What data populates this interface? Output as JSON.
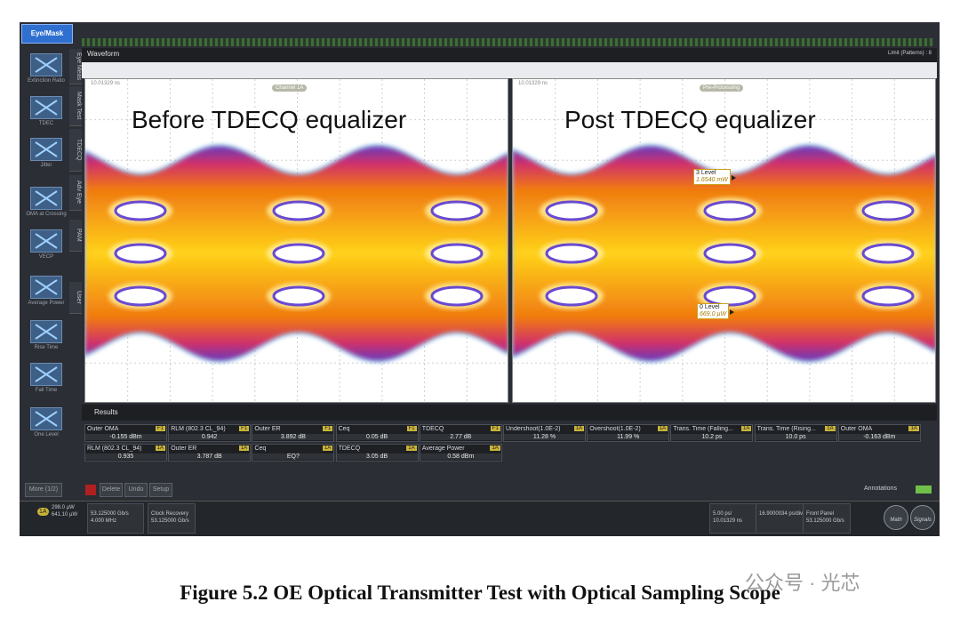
{
  "sidebar": {
    "button": "Eye/Mask",
    "tools": [
      "Extinction Ratio",
      "TDEC",
      "Jitter",
      "OMA at Crossing",
      "VECP",
      "Average Power",
      "Rise Time",
      "Fall Time",
      "One Level"
    ],
    "tabs": [
      "Eye Meas",
      "Mask Test",
      "TDECQ",
      "Adv Eye",
      "PAM",
      "User"
    ],
    "more": "More (1/2)"
  },
  "waveform": {
    "tab": "Waveform",
    "limit": "Limit (Patterns) : 8"
  },
  "plots": [
    {
      "title": "Before TDECQ equalizer",
      "time": "10.01329 ns",
      "source": "Channel 1A"
    },
    {
      "title": "Post TDECQ equalizer",
      "time": "10.01329 ns",
      "source": "Pre-Processing",
      "markers": [
        {
          "label": "3 Level",
          "value": "1.6540 mW"
        },
        {
          "label": "0 Level",
          "value": "669.0 µW"
        }
      ]
    }
  ],
  "results": {
    "tab": "Results",
    "rows": [
      [
        {
          "name": "Outer OMA",
          "source": "F1",
          "value": "-0.155 dBm"
        },
        {
          "name": "RLM (802.3 CL_94)",
          "source": "F1",
          "value": "0.942"
        },
        {
          "name": "Outer ER",
          "source": "F1",
          "value": "3.892 dB"
        },
        {
          "name": "Ceq",
          "source": "F1",
          "value": "0.05 dB"
        },
        {
          "name": "TDECQ",
          "source": "F1",
          "value": "2.77 dB"
        },
        {
          "name": "Undershoot(1.0E-2)",
          "source": "1A",
          "value": "11.28 %"
        },
        {
          "name": "Overshoot(1.0E-2)",
          "source": "1A",
          "value": "11.99 %"
        },
        {
          "name": "Trans. Time (Falling...",
          "source": "1A",
          "value": "10.2 ps"
        },
        {
          "name": "Trans. Time (Rising...",
          "source": "1A",
          "value": "10.0 ps"
        },
        {
          "name": "Outer OMA",
          "source": "1A",
          "value": "-0.163 dBm"
        }
      ],
      [
        {
          "name": "RLM (802.3 CL_94)",
          "source": "1A",
          "value": "0.935"
        },
        {
          "name": "Outer ER",
          "source": "1A",
          "value": "3.787 dB"
        },
        {
          "name": "Ceq",
          "source": "1A",
          "value": "EQ?"
        },
        {
          "name": "TDECQ",
          "source": "1A",
          "value": "3.05 dB"
        },
        {
          "name": "Average Power",
          "source": "1A",
          "value": "0.58 dBm"
        }
      ]
    ]
  },
  "buttons": [
    "Delete",
    "Undo",
    "Setup"
  ],
  "annotations": "Annotations",
  "status": {
    "channel": "1A",
    "power": [
      "298.0 µW",
      "641.10 µW"
    ],
    "rate": [
      "53.125000 Gb/s",
      "4.000 MHz"
    ],
    "clock": [
      "Clock Recovery",
      "53.125000 Gb/s"
    ],
    "timebase": [
      "5.00 ps/",
      "10.01329 ns"
    ],
    "pattern": [
      "16.9000034 ps/div"
    ],
    "trigger": [
      "Front Panel",
      "53.125000 Gb/s"
    ],
    "math": "Math",
    "signals": "Signals"
  },
  "caption": "Figure 5.2 OE Optical Transmitter Test with Optical Sampling Scope",
  "watermark": "公众号 · 光芯"
}
